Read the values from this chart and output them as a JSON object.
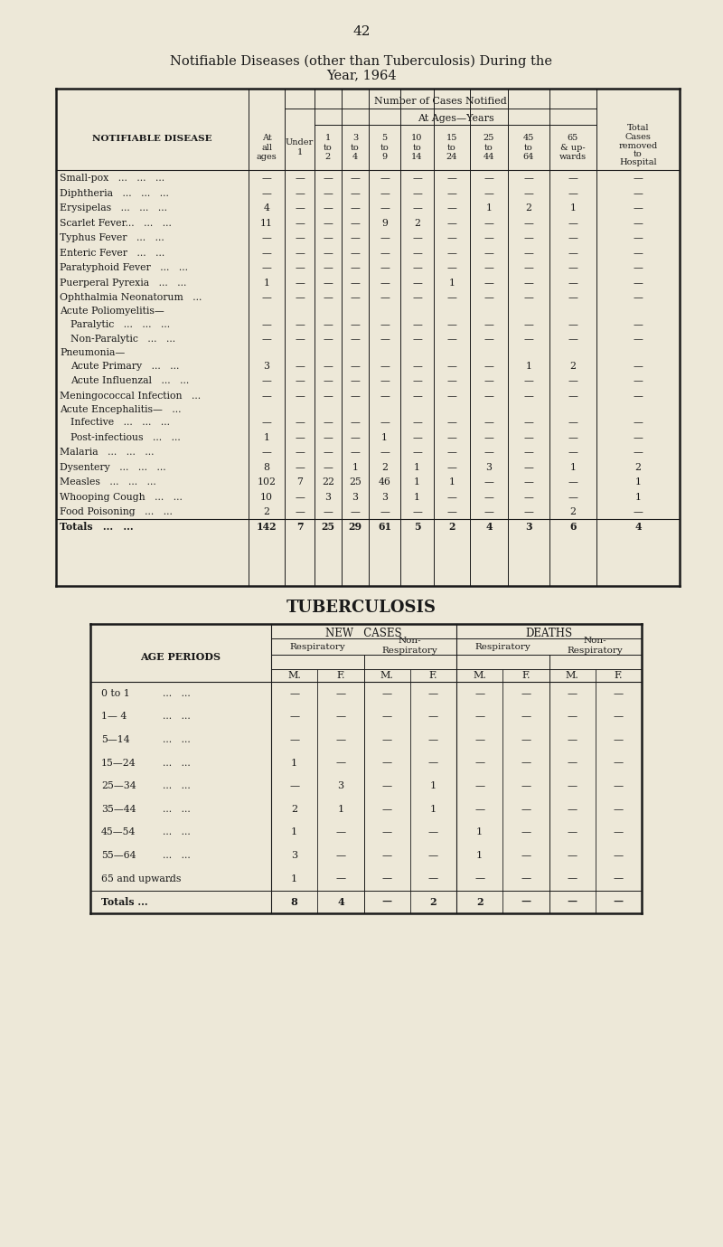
{
  "bg_color": "#ede8d8",
  "text_color": "#1a1a1a",
  "page_number": "42",
  "main_title_line1": "Notifiable Diseases (other than Tuberculosis) During the",
  "main_title_line2": "Year, 1964",
  "table1_header_notifiable": "NOTIFIABLE DISEASE",
  "table1_header_number": "Number of Cases Notified",
  "table1_header_atages": "At Ages—Years",
  "table1_col_headers": [
    "At\nall\nages",
    "Under\n1",
    "1\nto\n2",
    "3\nto\n4",
    "5\nto\n9",
    "10\nto\n14",
    "15\nto\n24",
    "25\nto\n44",
    "45\nto\n64",
    "65\n& up-\nwards"
  ],
  "table1_diseases": [
    "Small-pox   ...   ...   ...",
    "Diphtheria   ...   ...   ...",
    "Erysipelas   ...   ...   ...",
    "Scarlet Fever...   ...   ...",
    "Typhus Fever   ...   ...",
    "Enteric Fever   ...   ...",
    "Paratyphoid Fever   ...   ...",
    "Puerperal Pyrexia   ...   ...",
    "Ophthalmia Neonatorum   ...",
    "Acute Poliomyelitis—",
    "  Paralytic   ...   ...   ...",
    "  Non-Paralytic   ...   ...",
    "Pneumonia—",
    "  Acute Primary   ...   ...",
    "  Acute Influenzal   ...   ...",
    "Meningococcal Infection   ...",
    "Acute Encephalitis—   ...",
    "  Infective   ...   ...   ...",
    "  Post-infectious   ...   ...",
    "Malaria   ...   ...   ...",
    "Dysentery   ...   ...   ...",
    "Measles   ...   ...   ...",
    "Whooping Cough   ...   ...",
    "Food Poisoning   ...   ...",
    "Totals   ...   ..."
  ],
  "table1_indented": [
    false,
    false,
    false,
    false,
    false,
    false,
    false,
    false,
    false,
    false,
    true,
    true,
    false,
    true,
    true,
    false,
    false,
    true,
    true,
    false,
    false,
    false,
    false,
    false,
    false
  ],
  "table1_section_only": [
    false,
    false,
    false,
    false,
    false,
    false,
    false,
    false,
    false,
    true,
    false,
    false,
    true,
    false,
    false,
    false,
    true,
    false,
    false,
    false,
    false,
    false,
    false,
    false,
    false
  ],
  "table1_is_totals": [
    false,
    false,
    false,
    false,
    false,
    false,
    false,
    false,
    false,
    false,
    false,
    false,
    false,
    false,
    false,
    false,
    false,
    false,
    false,
    false,
    false,
    false,
    false,
    false,
    true
  ],
  "table1_data": [
    [
      "—",
      "—",
      "—",
      "—",
      "—",
      "—",
      "—",
      "—",
      "—",
      "—",
      "—"
    ],
    [
      "—",
      "—",
      "—",
      "—",
      "—",
      "—",
      "—",
      "—",
      "—",
      "—",
      "—"
    ],
    [
      "4",
      "—",
      "—",
      "—",
      "—",
      "—",
      "—",
      "1",
      "2",
      "1",
      "—"
    ],
    [
      "11",
      "—",
      "—",
      "—",
      "9",
      "2",
      "—",
      "—",
      "—",
      "—",
      "—"
    ],
    [
      "—",
      "—",
      "—",
      "—",
      "—",
      "—",
      "—",
      "—",
      "—",
      "—",
      "—"
    ],
    [
      "—",
      "—",
      "—",
      "—",
      "—",
      "—",
      "—",
      "—",
      "—",
      "—",
      "—"
    ],
    [
      "—",
      "—",
      "—",
      "—",
      "—",
      "—",
      "—",
      "—",
      "—",
      "—",
      "—"
    ],
    [
      "1",
      "—",
      "—",
      "—",
      "—",
      "—",
      "1",
      "—",
      "—",
      "—",
      "—"
    ],
    [
      "—",
      "—",
      "—",
      "—",
      "—",
      "—",
      "—",
      "—",
      "—",
      "—",
      "—"
    ],
    [
      "",
      "",
      "",
      "",
      "",
      "",
      "",
      "",
      "",
      "",
      ""
    ],
    [
      "—",
      "—",
      "—",
      "—",
      "—",
      "—",
      "—",
      "—",
      "—",
      "—",
      "—"
    ],
    [
      "—",
      "—",
      "—",
      "—",
      "—",
      "—",
      "—",
      "—",
      "—",
      "—",
      "—"
    ],
    [
      "",
      "",
      "",
      "",
      "",
      "",
      "",
      "",
      "",
      "",
      ""
    ],
    [
      "3",
      "—",
      "—",
      "—",
      "—",
      "—",
      "—",
      "—",
      "1",
      "2",
      "—"
    ],
    [
      "—",
      "—",
      "—",
      "—",
      "—",
      "—",
      "—",
      "—",
      "—",
      "—",
      "—"
    ],
    [
      "—",
      "—",
      "—",
      "—",
      "—",
      "—",
      "—",
      "—",
      "—",
      "—",
      "—"
    ],
    [
      "",
      "",
      "",
      "",
      "",
      "",
      "",
      "",
      "",
      "",
      ""
    ],
    [
      "—",
      "—",
      "—",
      "—",
      "—",
      "—",
      "—",
      "—",
      "—",
      "—",
      "—"
    ],
    [
      "1",
      "—",
      "—",
      "—",
      "1",
      "—",
      "—",
      "—",
      "—",
      "—",
      "—"
    ],
    [
      "—",
      "—",
      "—",
      "—",
      "—",
      "—",
      "—",
      "—",
      "—",
      "—",
      "—"
    ],
    [
      "8",
      "—",
      "—",
      "1",
      "2",
      "1",
      "—",
      "3",
      "—",
      "1",
      "2"
    ],
    [
      "102",
      "7",
      "22",
      "25",
      "46",
      "1",
      "1",
      "—",
      "—",
      "—",
      "1"
    ],
    [
      "10",
      "—",
      "3",
      "3",
      "3",
      "1",
      "—",
      "—",
      "—",
      "—",
      "1"
    ],
    [
      "2",
      "—",
      "—",
      "—",
      "—",
      "—",
      "—",
      "—",
      "—",
      "2",
      "—"
    ],
    [
      "142",
      "7",
      "25",
      "29",
      "61",
      "5",
      "2",
      "4",
      "3",
      "6",
      "4"
    ]
  ],
  "table2_title": "TUBERCULOSIS",
  "table2_header_age": "AGE PERIODS",
  "table2_header_new": "NEW   CASES",
  "table2_header_deaths": "DEATHS",
  "table2_header_mf": [
    "M.",
    "F.",
    "M.",
    "F.",
    "M.",
    "F.",
    "M.",
    "F."
  ],
  "table2_ages": [
    "0 to 1",
    "1— 4",
    "5—14",
    "15—24",
    "25—34",
    "35—44",
    "45—54",
    "55—64",
    "65 and upwards",
    "Totals ..."
  ],
  "table2_dots": [
    "...   ...",
    "...   ...",
    "...   ...",
    "...   ...",
    "...   ...",
    "...   ...",
    "...   ...",
    "...   ...",
    "...",
    ""
  ],
  "table2_data": [
    [
      "—",
      "—",
      "—",
      "—",
      "—",
      "—",
      "—",
      "—"
    ],
    [
      "—",
      "—",
      "—",
      "—",
      "—",
      "—",
      "—",
      "—"
    ],
    [
      "—",
      "—",
      "—",
      "—",
      "—",
      "—",
      "—",
      "—"
    ],
    [
      "1",
      "—",
      "—",
      "—",
      "—",
      "—",
      "—",
      "—"
    ],
    [
      "—",
      "3",
      "—",
      "1",
      "—",
      "—",
      "—",
      "—"
    ],
    [
      "2",
      "1",
      "—",
      "1",
      "—",
      "—",
      "—",
      "—"
    ],
    [
      "1",
      "—",
      "—",
      "—",
      "1",
      "—",
      "—",
      "—"
    ],
    [
      "3",
      "—",
      "—",
      "—",
      "1",
      "—",
      "—",
      "—"
    ],
    [
      "1",
      "—",
      "—",
      "—",
      "—",
      "—",
      "—",
      "—"
    ],
    [
      "8",
      "4",
      "—",
      "2",
      "2",
      "—",
      "—",
      "—"
    ]
  ]
}
